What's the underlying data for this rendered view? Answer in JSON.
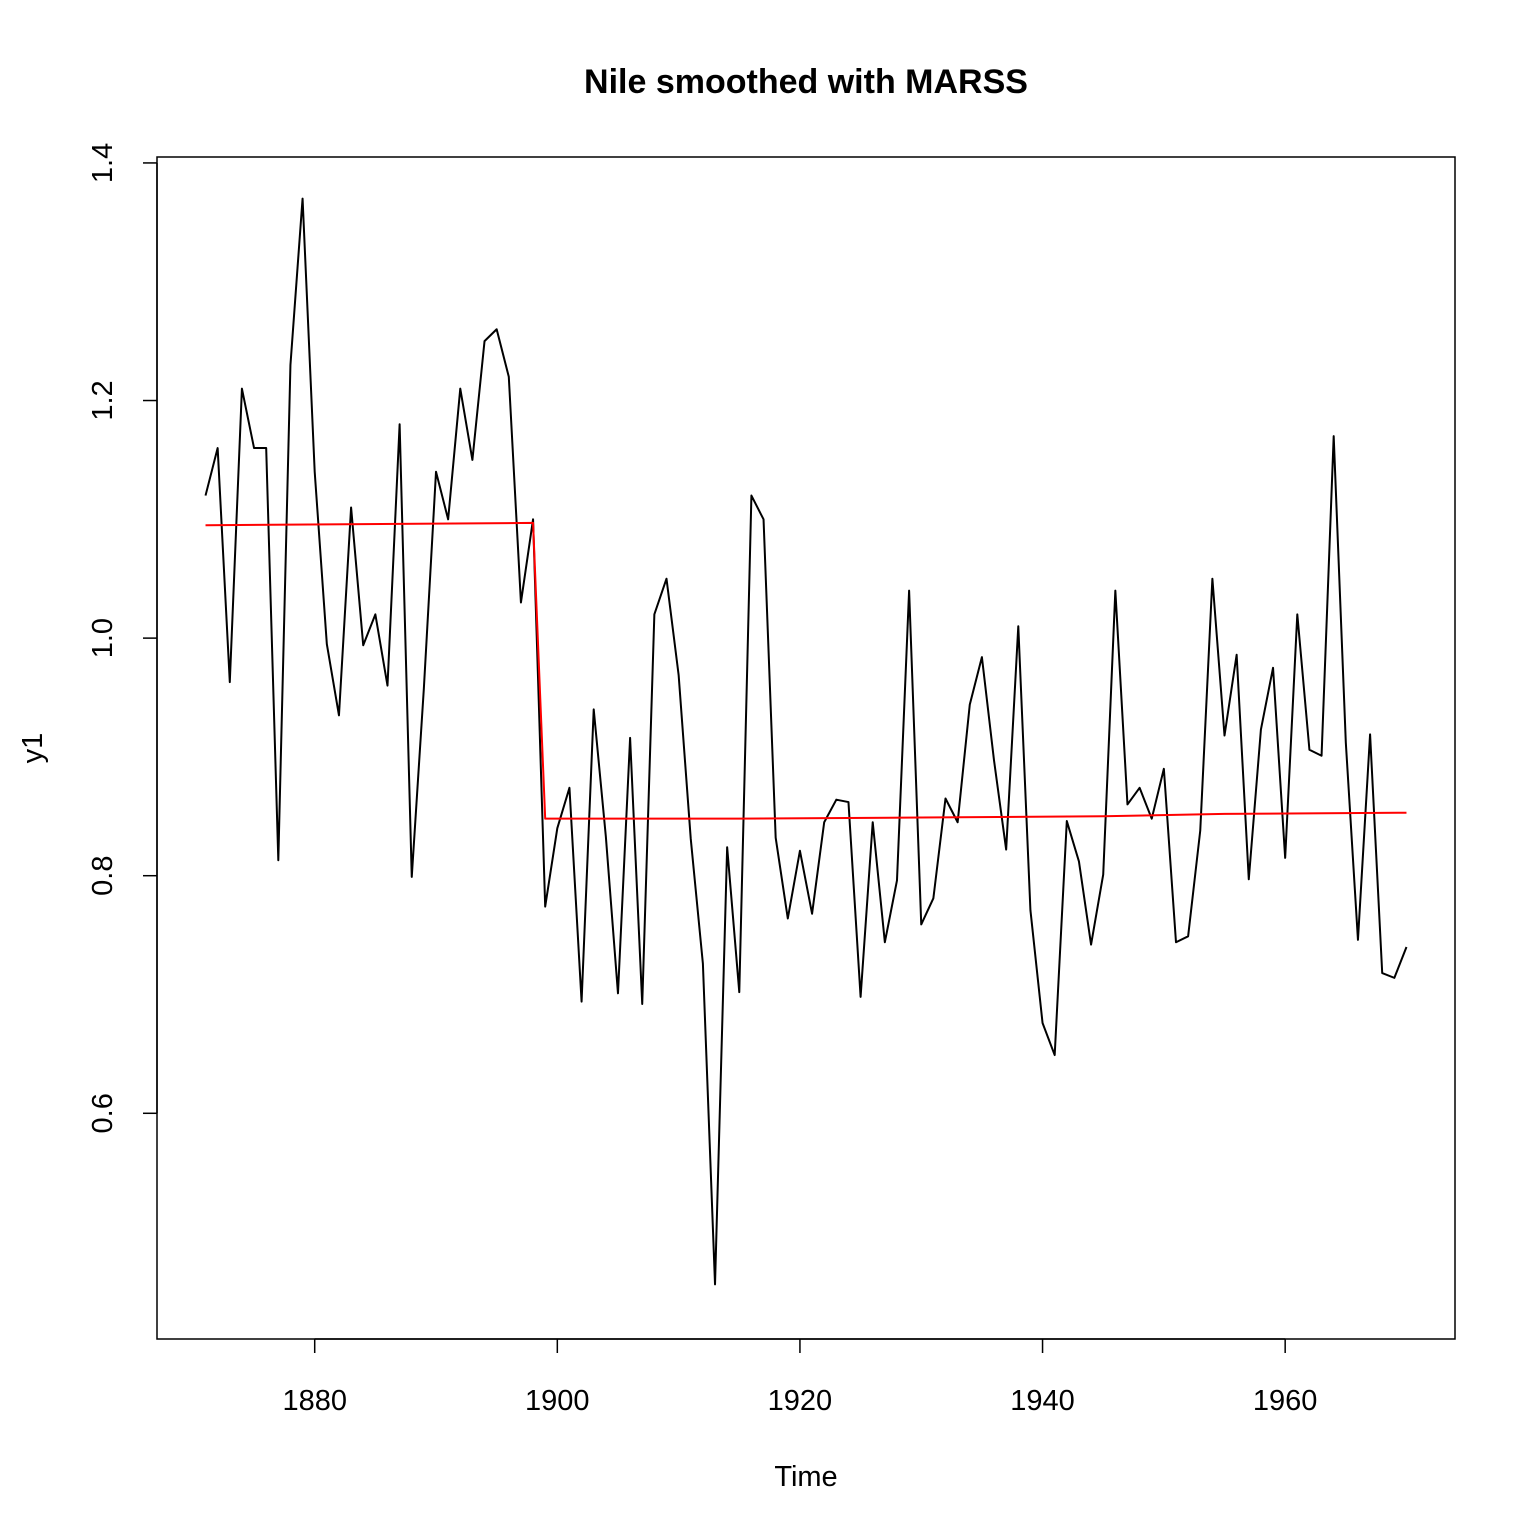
{
  "chart_data": {
    "type": "line",
    "title": "Nile smoothed with MARSS",
    "xlabel": "Time",
    "ylabel": "y1",
    "xlim": [
      1867,
      1974
    ],
    "ylim": [
      0.41,
      1.405
    ],
    "x_ticks": [
      1880,
      1900,
      1920,
      1940,
      1960
    ],
    "x_tick_labels": [
      "1880",
      "1900",
      "1920",
      "1940",
      "1960"
    ],
    "y_ticks": [
      0.6,
      0.8,
      1.0,
      1.2,
      1.4
    ],
    "y_tick_labels": [
      "0.6",
      "0.8",
      "1.0",
      "1.2",
      "1.4"
    ],
    "grid": false,
    "series": [
      {
        "color": "#000000",
        "x": [
          1871,
          1872,
          1873,
          1874,
          1875,
          1876,
          1877,
          1878,
          1879,
          1880,
          1881,
          1882,
          1883,
          1884,
          1885,
          1886,
          1887,
          1888,
          1889,
          1890,
          1891,
          1892,
          1893,
          1894,
          1895,
          1896,
          1897,
          1898,
          1899,
          1900,
          1901,
          1902,
          1903,
          1904,
          1905,
          1906,
          1907,
          1908,
          1909,
          1910,
          1911,
          1912,
          1913,
          1914,
          1915,
          1916,
          1917,
          1918,
          1919,
          1920,
          1921,
          1922,
          1923,
          1924,
          1925,
          1926,
          1927,
          1928,
          1929,
          1930,
          1931,
          1932,
          1933,
          1934,
          1935,
          1936,
          1937,
          1938,
          1939,
          1940,
          1941,
          1942,
          1943,
          1944,
          1945,
          1946,
          1947,
          1948,
          1949,
          1950,
          1951,
          1952,
          1953,
          1954,
          1955,
          1956,
          1957,
          1958,
          1959,
          1960,
          1961,
          1962,
          1963,
          1964,
          1965,
          1966,
          1967,
          1968,
          1969,
          1970
        ],
        "values": [
          1.12,
          1.16,
          0.963,
          1.21,
          1.16,
          1.16,
          0.813,
          1.23,
          1.37,
          1.14,
          0.995,
          0.935,
          1.11,
          0.994,
          1.02,
          0.96,
          1.18,
          0.799,
          0.958,
          1.14,
          1.1,
          1.21,
          1.15,
          1.25,
          1.26,
          1.22,
          1.03,
          1.1,
          0.774,
          0.84,
          0.874,
          0.694,
          0.94,
          0.833,
          0.701,
          0.916,
          0.692,
          1.02,
          1.05,
          0.969,
          0.831,
          0.726,
          0.456,
          0.824,
          0.702,
          1.12,
          1.1,
          0.832,
          0.764,
          0.821,
          0.768,
          0.845,
          0.864,
          0.862,
          0.698,
          0.845,
          0.744,
          0.796,
          1.04,
          0.759,
          0.781,
          0.865,
          0.845,
          0.944,
          0.984,
          0.897,
          0.822,
          1.01,
          0.771,
          0.676,
          0.649,
          0.846,
          0.812,
          0.742,
          0.801,
          1.04,
          0.86,
          0.874,
          0.848,
          0.89,
          0.744,
          0.749,
          0.838,
          1.05,
          0.918,
          0.986,
          0.797,
          0.923,
          0.975,
          0.815,
          1.02,
          0.906,
          0.901,
          1.17,
          0.912,
          0.746,
          0.919,
          0.718,
          0.714,
          0.74
        ]
      },
      {
        "color": "#ff0000",
        "x": [
          1871,
          1898,
          1899,
          1915,
          1930,
          1945,
          1955,
          1970
        ],
        "values": [
          1.095,
          1.097,
          0.848,
          0.848,
          0.849,
          0.85,
          0.852,
          0.853
        ]
      }
    ]
  }
}
